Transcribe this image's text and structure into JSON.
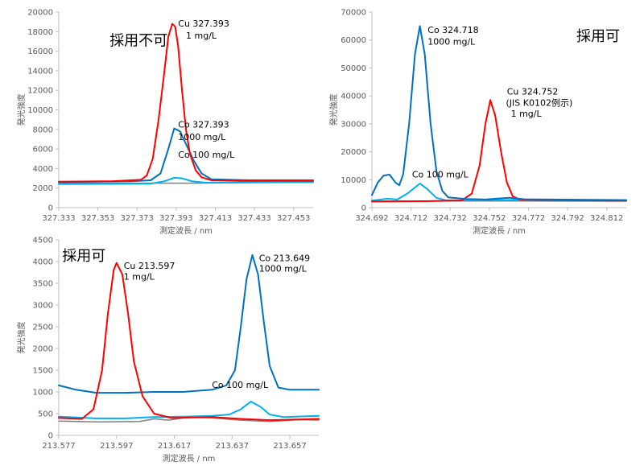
{
  "chart_data": [
    {
      "type": "line",
      "xlabel": "測定波長 / nm",
      "ylabel": "発光強度",
      "xlim": [
        327.333,
        327.463
      ],
      "ylim": [
        0,
        20000
      ],
      "xticks": [
        "327.333",
        "327.353",
        "327.373",
        "327.393",
        "327.413",
        "327.433",
        "327.453"
      ],
      "xtick_values": [
        327.333,
        327.353,
        327.373,
        327.393,
        327.413,
        327.433,
        327.453
      ],
      "yticks": [
        "0",
        "2000",
        "4000",
        "6000",
        "8000",
        "10000",
        "12000",
        "14000",
        "16000",
        "18000",
        "20000"
      ],
      "ytick_values": [
        0,
        2000,
        4000,
        6000,
        8000,
        10000,
        12000,
        14000,
        16000,
        18000,
        20000
      ],
      "series": [
        {
          "name": "Cu 327.393 1 mg/L",
          "color": "#ff0000",
          "points": [
            [
              327.333,
              2650
            ],
            [
              327.36,
              2700
            ],
            [
              327.375,
              2850
            ],
            [
              327.378,
              3300
            ],
            [
              327.381,
              5000
            ],
            [
              327.384,
              9000
            ],
            [
              327.387,
              14000
            ],
            [
              327.389,
              17500
            ],
            [
              327.391,
              18800
            ],
            [
              327.3925,
              18500
            ],
            [
              327.394,
              16500
            ],
            [
              327.396,
              12000
            ],
            [
              327.398,
              8000
            ],
            [
              327.4,
              5500
            ],
            [
              327.403,
              3800
            ],
            [
              327.406,
              3100
            ],
            [
              327.411,
              2800
            ],
            [
              327.43,
              2750
            ],
            [
              327.463,
              2750
            ]
          ]
        },
        {
          "name": "Co 327.393 1000 mg/L",
          "color": "#0070c0",
          "points": [
            [
              327.333,
              2600
            ],
            [
              327.37,
              2700
            ],
            [
              327.38,
              2800
            ],
            [
              327.385,
              3500
            ],
            [
              327.389,
              6000
            ],
            [
              327.392,
              8100
            ],
            [
              327.395,
              7800
            ],
            [
              327.398,
              6500
            ],
            [
              327.402,
              4800
            ],
            [
              327.406,
              3500
            ],
            [
              327.411,
              2900
            ],
            [
              327.43,
              2800
            ],
            [
              327.463,
              2800
            ]
          ]
        },
        {
          "name": "Co 100 mg/L",
          "color": "#00b0f0",
          "points": [
            [
              327.333,
              2400
            ],
            [
              327.38,
              2450
            ],
            [
              327.387,
              2700
            ],
            [
              327.392,
              3050
            ],
            [
              327.396,
              3000
            ],
            [
              327.401,
              2700
            ],
            [
              327.408,
              2550
            ],
            [
              327.43,
              2600
            ],
            [
              327.463,
              2600
            ]
          ]
        },
        {
          "name": "",
          "color": "#808080",
          "points": [
            [
              327.333,
              2500
            ],
            [
              327.4,
              2500
            ],
            [
              327.463,
              2600
            ]
          ]
        }
      ],
      "annotations": [
        {
          "text": "Cu 327.393",
          "x": 327.394,
          "y": 18500
        },
        {
          "text": "1 mg/L",
          "x": 327.398,
          "y": 17300
        },
        {
          "text": "Co 327.393",
          "x": 327.394,
          "y": 8200
        },
        {
          "text": "1000 mg/L",
          "x": 327.394,
          "y": 6900
        },
        {
          "text": "Co 100 mg/L",
          "x": 327.394,
          "y": 5100
        }
      ],
      "label": "採用不可",
      "label_at": [
        327.359,
        16600
      ]
    },
    {
      "type": "line",
      "xlabel": "測定波長 / nm",
      "ylabel": "発光強度",
      "xlim": [
        324.692,
        324.822
      ],
      "ylim": [
        0,
        70000
      ],
      "xticks": [
        "324.692",
        "324.712",
        "324.732",
        "324.752",
        "324.772",
        "324.792",
        "324.812"
      ],
      "xtick_values": [
        324.692,
        324.712,
        324.732,
        324.752,
        324.772,
        324.792,
        324.812
      ],
      "yticks": [
        "0",
        "10000",
        "20000",
        "30000",
        "40000",
        "50000",
        "60000",
        "70000"
      ],
      "ytick_values": [
        0,
        10000,
        20000,
        30000,
        40000,
        50000,
        60000,
        70000
      ],
      "series": [
        {
          "name": "Co 324.718 1000 mg/L",
          "color": "#0070c0",
          "points": [
            [
              324.692,
              4500
            ],
            [
              324.695,
              9000
            ],
            [
              324.698,
              11500
            ],
            [
              324.701,
              11800
            ],
            [
              324.704,
              9000
            ],
            [
              324.706,
              8000
            ],
            [
              324.708,
              12000
            ],
            [
              324.711,
              30000
            ],
            [
              324.714,
              55000
            ],
            [
              324.7165,
              65000
            ],
            [
              324.719,
              55000
            ],
            [
              324.722,
              30000
            ],
            [
              324.725,
              13000
            ],
            [
              324.728,
              6000
            ],
            [
              324.731,
              3700
            ],
            [
              324.74,
              3100
            ],
            [
              324.75,
              2900
            ],
            [
              324.762,
              3500
            ],
            [
              324.77,
              3000
            ],
            [
              324.822,
              2700
            ]
          ]
        },
        {
          "name": "Cu 324.752 (JIS K0102例示) 1 mg/L",
          "color": "#ff0000",
          "points": [
            [
              324.692,
              2200
            ],
            [
              324.72,
              2300
            ],
            [
              324.738,
              2600
            ],
            [
              324.743,
              5000
            ],
            [
              324.747,
              15000
            ],
            [
              324.75,
              30000
            ],
            [
              324.7525,
              38500
            ],
            [
              324.755,
              33000
            ],
            [
              324.758,
              20000
            ],
            [
              324.761,
              9000
            ],
            [
              324.764,
              4000
            ],
            [
              324.768,
              2800
            ],
            [
              324.78,
              2700
            ],
            [
              324.822,
              2500
            ]
          ]
        },
        {
          "name": "Co 100 mg/L",
          "color": "#00b0f0",
          "points": [
            [
              324.692,
              2500
            ],
            [
              324.7,
              3200
            ],
            [
              324.705,
              2900
            ],
            [
              324.71,
              5000
            ],
            [
              324.7165,
              8600
            ],
            [
              324.72,
              6800
            ],
            [
              324.725,
              3500
            ],
            [
              324.73,
              2600
            ],
            [
              324.76,
              2700
            ],
            [
              324.822,
              2600
            ]
          ]
        },
        {
          "name": "",
          "color": "#808080",
          "points": [
            [
              324.692,
              2300
            ],
            [
              324.76,
              2400
            ],
            [
              324.822,
              2300
            ]
          ]
        }
      ],
      "annotations": [
        {
          "text": "Co 324.718",
          "x": 324.7205,
          "y": 62500
        },
        {
          "text": "1000 mg/L",
          "x": 324.7205,
          "y": 58300
        },
        {
          "text": "Cu 324.752",
          "x": 324.761,
          "y": 40500
        },
        {
          "text": "(JIS K0102例示)",
          "x": 324.7605,
          "y": 36500
        },
        {
          "text": "1 mg/L",
          "x": 324.763,
          "y": 32500
        },
        {
          "text": "Co 100 mg/L",
          "x": 324.7125,
          "y": 10800
        }
      ],
      "label": "採用可",
      "label_at": [
        324.7965,
        59700
      ]
    },
    {
      "type": "line",
      "xlabel": "測定波長 / nm",
      "ylabel": "発光強度",
      "xlim": [
        213.577,
        213.667
      ],
      "ylim": [
        0,
        4500
      ],
      "xticks": [
        "213.577",
        "213.597",
        "213.617",
        "213.637",
        "213.657"
      ],
      "xtick_values": [
        213.577,
        213.597,
        213.617,
        213.637,
        213.657
      ],
      "yticks": [
        "0",
        "500",
        "1000",
        "1500",
        "2000",
        "2500",
        "3000",
        "3500",
        "4000",
        "4500"
      ],
      "ytick_values": [
        0,
        500,
        1000,
        1500,
        2000,
        2500,
        3000,
        3500,
        4000,
        4500
      ],
      "series": [
        {
          "name": "Cu 213.597 1 mg/L",
          "color": "#ff0000",
          "points": [
            [
              213.577,
              400
            ],
            [
              213.585,
              380
            ],
            [
              213.589,
              600
            ],
            [
              213.592,
              1500
            ],
            [
              213.594,
              2800
            ],
            [
              213.596,
              3800
            ],
            [
              213.597,
              3970
            ],
            [
              213.599,
              3700
            ],
            [
              213.601,
              2800
            ],
            [
              213.603,
              1700
            ],
            [
              213.606,
              900
            ],
            [
              213.61,
              500
            ],
            [
              213.616,
              400
            ],
            [
              213.63,
              420
            ],
            [
              213.64,
              380
            ],
            [
              213.65,
              350
            ],
            [
              213.667,
              380
            ]
          ]
        },
        {
          "name": "Co 213.649 1000 mg/L",
          "color": "#0070c0",
          "points": [
            [
              213.577,
              1150
            ],
            [
              213.583,
              1050
            ],
            [
              213.59,
              980
            ],
            [
              213.6,
              980
            ],
            [
              213.61,
              1000
            ],
            [
              213.62,
              1000
            ],
            [
              213.63,
              1050
            ],
            [
              213.635,
              1150
            ],
            [
              213.638,
              1500
            ],
            [
              213.64,
              2500
            ],
            [
              213.642,
              3600
            ],
            [
              213.644,
              4150
            ],
            [
              213.646,
              3700
            ],
            [
              213.648,
              2600
            ],
            [
              213.65,
              1600
            ],
            [
              213.653,
              1100
            ],
            [
              213.657,
              1050
            ],
            [
              213.667,
              1050
            ]
          ]
        },
        {
          "name": "Co 100 mg/L",
          "color": "#00b0f0",
          "points": [
            [
              213.577,
              430
            ],
            [
              213.59,
              390
            ],
            [
              213.6,
              390
            ],
            [
              213.61,
              420
            ],
            [
              213.62,
              430
            ],
            [
              213.63,
              450
            ],
            [
              213.636,
              480
            ],
            [
              213.64,
              600
            ],
            [
              213.6435,
              780
            ],
            [
              213.647,
              650
            ],
            [
              213.65,
              480
            ],
            [
              213.655,
              420
            ],
            [
              213.667,
              450
            ]
          ]
        },
        {
          "name": "",
          "color": "#808080",
          "points": [
            [
              213.577,
              330
            ],
            [
              213.59,
              310
            ],
            [
              213.605,
              320
            ],
            [
              213.61,
              380
            ],
            [
              213.615,
              350
            ],
            [
              213.622,
              420
            ],
            [
              213.63,
              400
            ],
            [
              213.64,
              350
            ],
            [
              213.65,
              320
            ],
            [
              213.66,
              360
            ],
            [
              213.667,
              350
            ]
          ]
        }
      ],
      "annotations": [
        {
          "text": "Cu 213.597",
          "x": 213.5995,
          "y": 3830
        },
        {
          "text": "1 mg/L",
          "x": 213.5995,
          "y": 3580
        },
        {
          "text": "Co 213.649",
          "x": 213.6463,
          "y": 4010
        },
        {
          "text": "1000 mg/L",
          "x": 213.6463,
          "y": 3770
        },
        {
          "text": "Co 100 mg/L",
          "x": 213.63,
          "y": 1090
        }
      ],
      "label": "採用可",
      "label_at": [
        213.5782,
        4020
      ]
    }
  ]
}
